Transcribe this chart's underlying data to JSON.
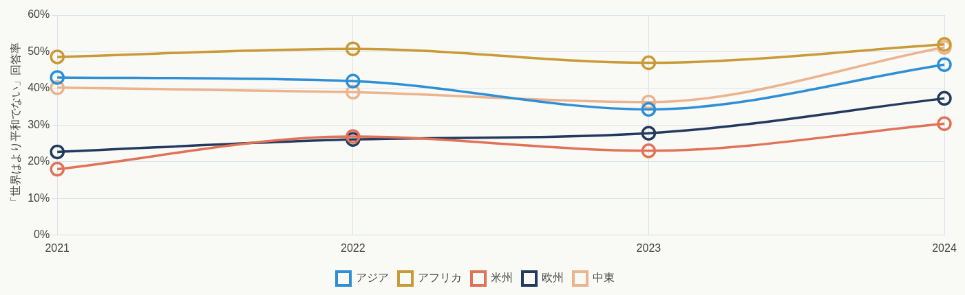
{
  "chart_data": {
    "type": "line",
    "ylabel": "「世界はより平和でない」回答率",
    "categories": [
      "2021",
      "2022",
      "2023",
      "2024"
    ],
    "series": [
      {
        "name": "アジア",
        "color": "#2e8fd6",
        "values": [
          43,
          42,
          34.3,
          46.5
        ]
      },
      {
        "name": "アフリカ",
        "color": "#c99a35",
        "values": [
          48.6,
          50.8,
          47,
          52
        ]
      },
      {
        "name": "米州",
        "color": "#e07258",
        "values": [
          18,
          26.9,
          23,
          30.4
        ]
      },
      {
        "name": "欧州",
        "color": "#233a5e",
        "values": [
          22.7,
          26.1,
          27.8,
          37.3
        ]
      },
      {
        "name": "中東",
        "color": "#ebb48f",
        "values": [
          40.2,
          39,
          36.3,
          51.2
        ]
      }
    ],
    "ylim": [
      0,
      60
    ],
    "yticks": [
      {
        "value": 0,
        "label": "0%"
      },
      {
        "value": 10,
        "label": "10%"
      },
      {
        "value": 20,
        "label": "20%"
      },
      {
        "value": 30,
        "label": "30%"
      },
      {
        "value": 40,
        "label": "40%"
      },
      {
        "value": 50,
        "label": "50%"
      },
      {
        "value": 60,
        "label": "60%"
      }
    ],
    "grid": true,
    "legend": "bottom",
    "marker": "circle",
    "line_style": "solid"
  }
}
